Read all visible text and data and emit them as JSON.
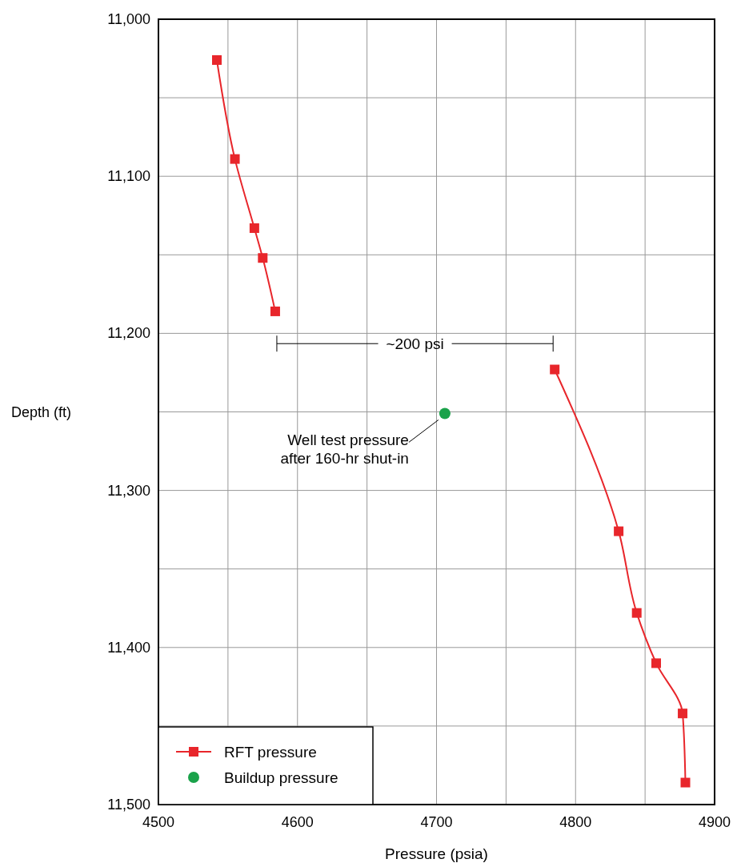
{
  "chart_data": {
    "type": "line",
    "xlabel": "Pressure (psia)",
    "ylabel": "Depth (ft)",
    "xlim": [
      4500,
      4900
    ],
    "xticks": [
      4500,
      {
        "value": 4550,
        "label": null
      },
      4600,
      {
        "value": 4650,
        "label": null
      },
      4700,
      {
        "value": 4750,
        "label": null
      },
      4800,
      {
        "value": 4850,
        "label": null
      },
      4900
    ],
    "ylim": [
      11500,
      11000
    ],
    "yticks": [
      {
        "value": 11000,
        "label": "11,000"
      },
      {
        "value": 11050,
        "label": null
      },
      {
        "value": 11100,
        "label": "11,100"
      },
      {
        "value": 11150,
        "label": null
      },
      {
        "value": 11200,
        "label": "11,200"
      },
      {
        "value": 11250,
        "label": null
      },
      {
        "value": 11300,
        "label": "11,300"
      },
      {
        "value": 11350,
        "label": null
      },
      {
        "value": 11400,
        "label": "11,400"
      },
      {
        "value": 11450,
        "label": null
      },
      {
        "value": 11500,
        "label": "11,500"
      }
    ],
    "grid": true,
    "legend": "bottom left",
    "series": [
      {
        "name": "RFT pressure",
        "color": "#e8262b",
        "marker": "square",
        "x": [
          4542,
          4555,
          4569,
          4575,
          4584,
          null,
          4785,
          4831,
          4844,
          4858,
          4877,
          4879
        ],
        "values": [
          11026,
          11089,
          11133,
          11152,
          11186,
          null,
          11223,
          11326,
          11378,
          11410,
          11442,
          11486
        ]
      },
      {
        "name": "Buildup pressure",
        "type": "scatter",
        "color": "#1aa24a",
        "marker": "circle",
        "x": [
          4706
        ],
        "values": [
          11251
        ]
      }
    ],
    "annotations": [
      "~200 psi",
      {
        "text": "Well test pressure\nafter 160-hr shut-in",
        "x": 4706,
        "y": 11251
      }
    ]
  }
}
